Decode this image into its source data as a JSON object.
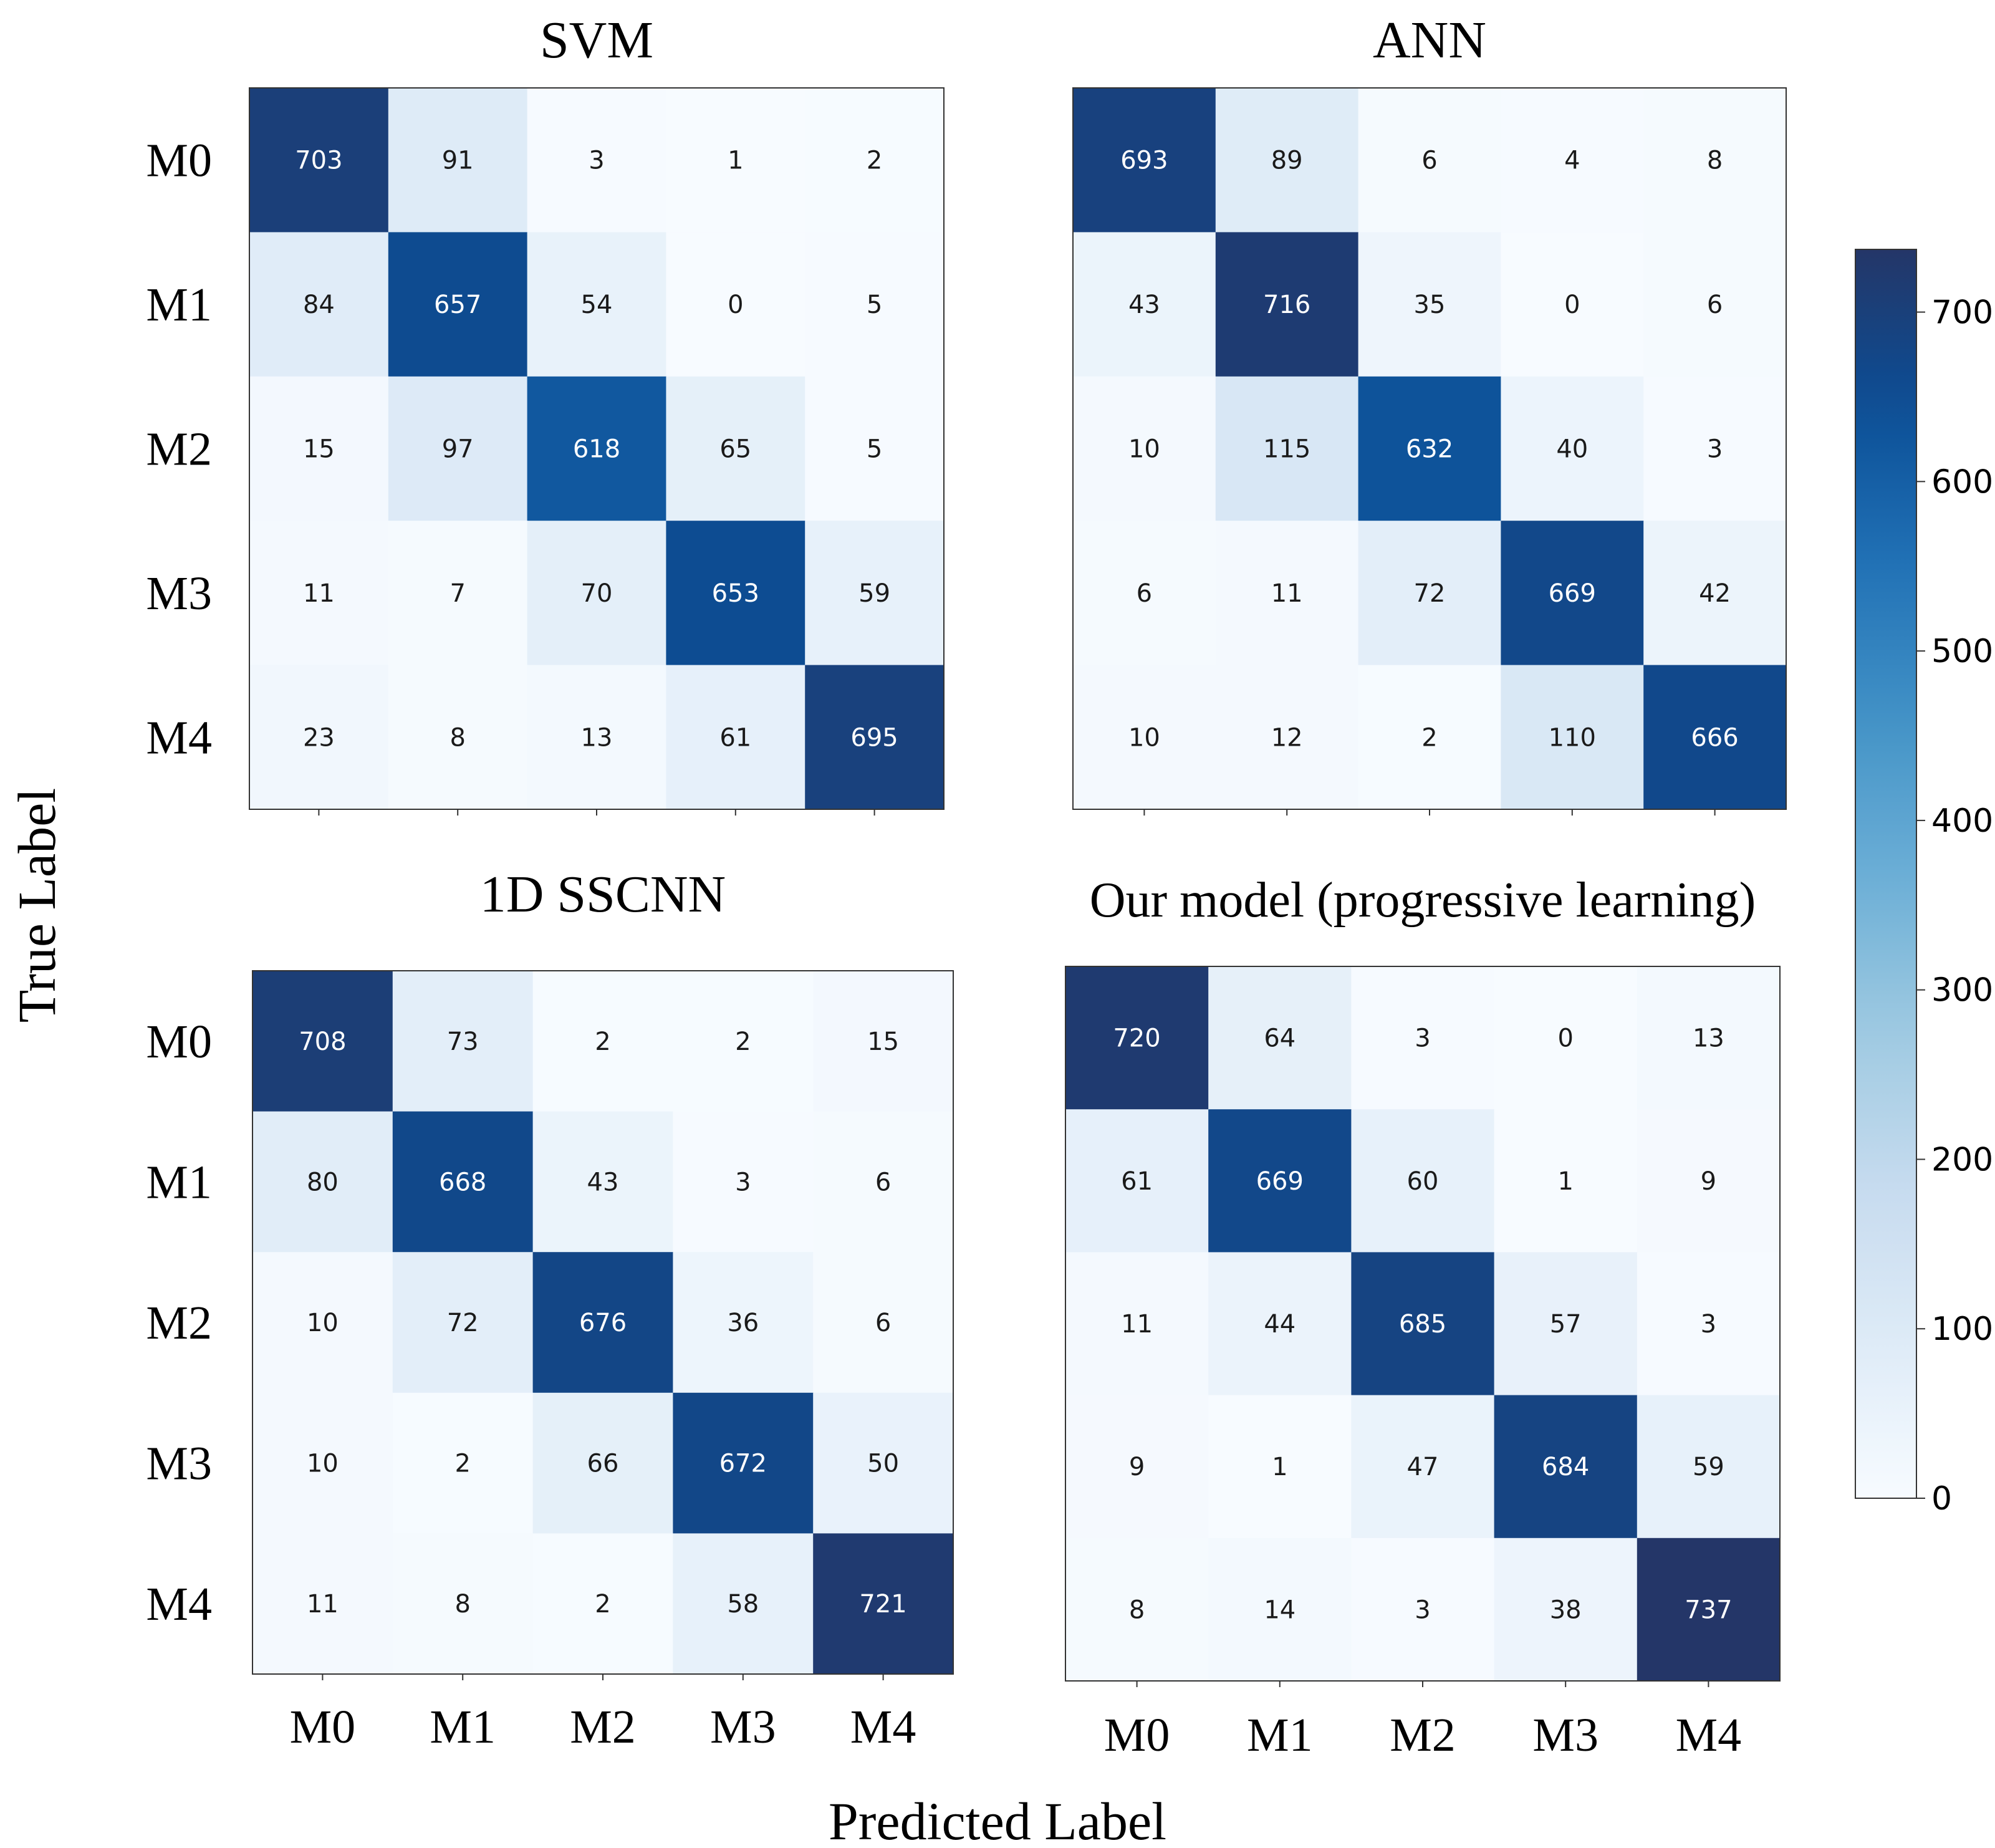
{
  "figure": {
    "xlabel": "Predicted Label",
    "ylabel": "True Label"
  },
  "chart_data": [
    {
      "type": "heatmap",
      "title": "SVM",
      "x_categories": [
        "M0",
        "M1",
        "M2",
        "M3",
        "M4"
      ],
      "y_categories": [
        "M0",
        "M1",
        "M2",
        "M3",
        "M4"
      ],
      "values": [
        [
          703,
          91,
          3,
          1,
          2
        ],
        [
          84,
          657,
          54,
          0,
          5
        ],
        [
          15,
          97,
          618,
          65,
          5
        ],
        [
          11,
          7,
          70,
          653,
          59
        ],
        [
          23,
          8,
          13,
          61,
          695
        ]
      ]
    },
    {
      "type": "heatmap",
      "title": "ANN",
      "x_categories": [
        "M0",
        "M1",
        "M2",
        "M3",
        "M4"
      ],
      "y_categories": [
        "M0",
        "M1",
        "M2",
        "M3",
        "M4"
      ],
      "values": [
        [
          693,
          89,
          6,
          4,
          8
        ],
        [
          43,
          716,
          35,
          0,
          6
        ],
        [
          10,
          115,
          632,
          40,
          3
        ],
        [
          6,
          11,
          72,
          669,
          42
        ],
        [
          10,
          12,
          2,
          110,
          666
        ]
      ]
    },
    {
      "type": "heatmap",
      "title": "1D SSCNN",
      "x_categories": [
        "M0",
        "M1",
        "M2",
        "M3",
        "M4"
      ],
      "y_categories": [
        "M0",
        "M1",
        "M2",
        "M3",
        "M4"
      ],
      "values": [
        [
          708,
          73,
          2,
          2,
          15
        ],
        [
          80,
          668,
          43,
          3,
          6
        ],
        [
          10,
          72,
          676,
          36,
          6
        ],
        [
          10,
          2,
          66,
          672,
          50
        ],
        [
          11,
          8,
          2,
          58,
          721
        ]
      ]
    },
    {
      "type": "heatmap",
      "title": "Our model (progressive learning)",
      "x_categories": [
        "M0",
        "M1",
        "M2",
        "M3",
        "M4"
      ],
      "y_categories": [
        "M0",
        "M1",
        "M2",
        "M3",
        "M4"
      ],
      "values": [
        [
          720,
          64,
          3,
          0,
          13
        ],
        [
          61,
          669,
          60,
          1,
          9
        ],
        [
          11,
          44,
          685,
          57,
          3
        ],
        [
          9,
          1,
          47,
          684,
          59
        ],
        [
          8,
          14,
          3,
          38,
          737
        ]
      ]
    }
  ],
  "colorbar": {
    "min": 0,
    "max": 737,
    "ticks": [
      "0",
      "100",
      "200",
      "300",
      "400",
      "500",
      "600",
      "700"
    ],
    "colormap": "Blues"
  }
}
